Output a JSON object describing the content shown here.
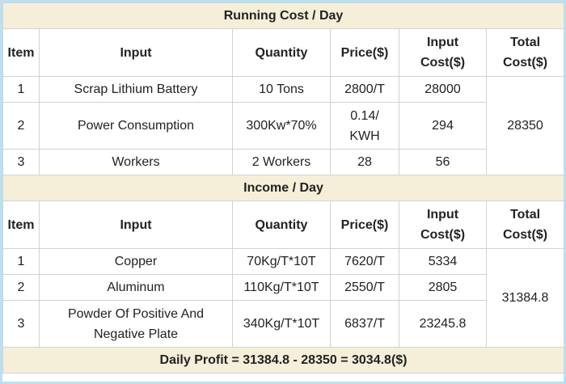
{
  "sections": [
    {
      "title": "Running Cost / Day",
      "header": [
        "Item",
        "Input",
        "Quantity",
        "Price($)",
        "Input\nCost($)",
        "Total\nCost($)"
      ],
      "rows": [
        [
          "1",
          "Scrap Lithium Battery",
          "10 Tons",
          "2800/T",
          "28000"
        ],
        [
          "2",
          "Power Consumption",
          "300Kw*70%",
          "0.14/\nKWH",
          "294"
        ],
        [
          "3",
          "Workers",
          "2 Workers",
          "28",
          "56"
        ]
      ],
      "total": "28350"
    },
    {
      "title": "Income / Day",
      "header": [
        "Item",
        "Input",
        "Quantity",
        "Price($)",
        "Input\nCost($)",
        "Total\nCost($)"
      ],
      "rows": [
        [
          "1",
          "Copper",
          "70Kg/T*10T",
          "7620/T",
          "5334"
        ],
        [
          "2",
          "Aluminum",
          "110Kg/T*10T",
          "2550/T",
          "2805"
        ],
        [
          "3",
          "Powder Of Positive And\nNegative Plate",
          "340Kg/T*10T",
          "6837/T",
          "23245.8"
        ]
      ],
      "total": "31384.8"
    }
  ],
  "footer": "Daily Profit = 31384.8 - 28350 = 3034.8($)"
}
